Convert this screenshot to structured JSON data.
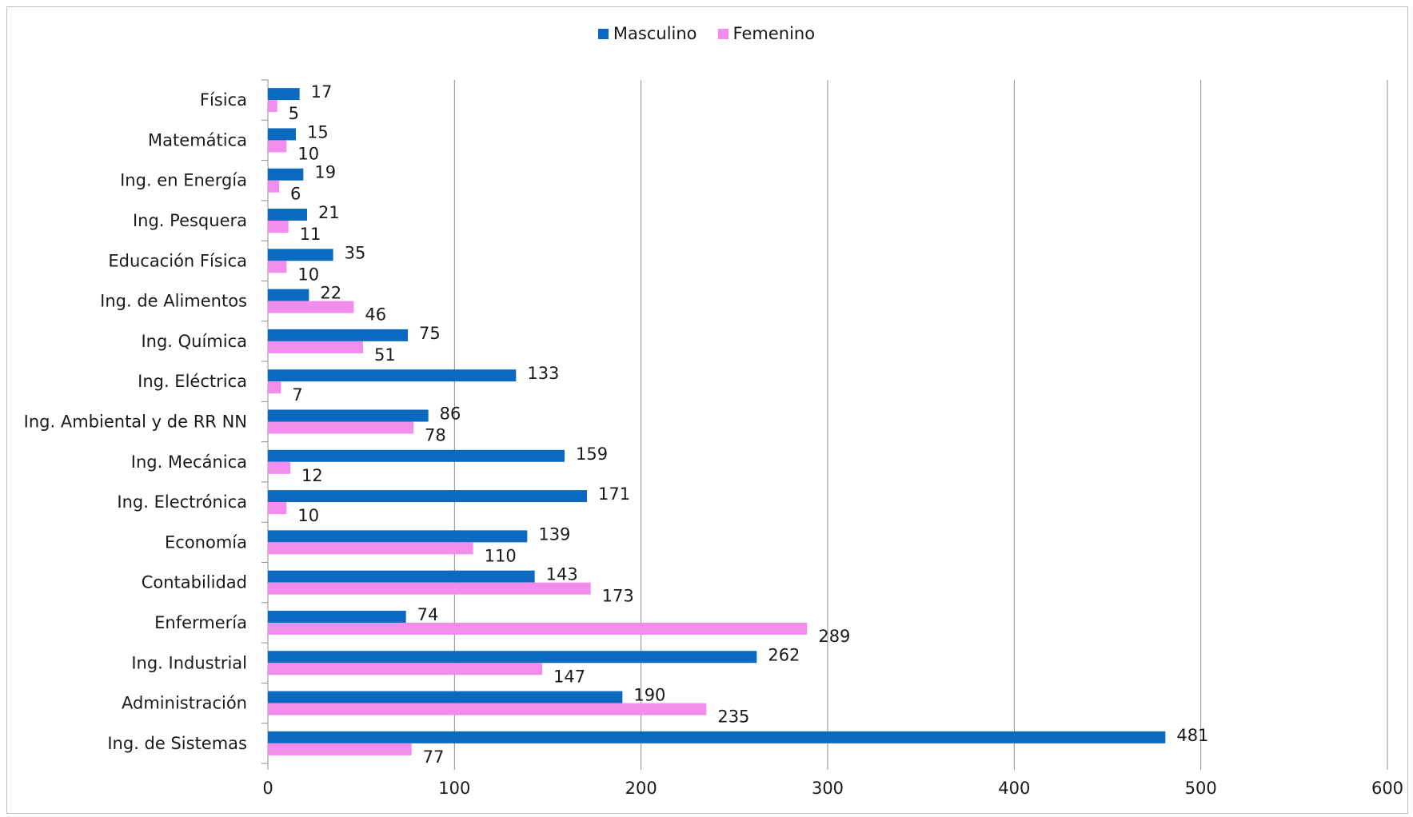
{
  "chart_data": {
    "type": "bar",
    "orientation": "horizontal",
    "categories": [
      "Física",
      "Matemática",
      "Ing. en Energía",
      "Ing. Pesquera",
      "Educación Física",
      "Ing. de Alimentos",
      "Ing. Química",
      "Ing. Eléctrica",
      "Ing. Ambiental y de RR NN",
      "Ing. Mecánica",
      "Ing. Electrónica",
      "Economía",
      "Contabilidad",
      "Enfermería",
      "Ing. Industrial",
      "Administración",
      "Ing. de Sistemas"
    ],
    "series": [
      {
        "name": "Masculino",
        "color": "#0b6abf",
        "values": [
          17,
          15,
          19,
          21,
          35,
          22,
          75,
          133,
          86,
          159,
          171,
          139,
          143,
          74,
          262,
          190,
          481
        ]
      },
      {
        "name": "Femenino",
        "color": "#f28ded",
        "values": [
          5,
          10,
          6,
          11,
          10,
          46,
          51,
          7,
          78,
          12,
          10,
          110,
          173,
          289,
          147,
          235,
          77
        ]
      }
    ],
    "xlim": [
      0,
      600
    ],
    "xticks": [
      "0",
      "100",
      "200",
      "300",
      "400",
      "500",
      "600"
    ],
    "grid": true,
    "legend_position": "top-center",
    "data_labels": true,
    "title": "",
    "xlabel": "",
    "ylabel": ""
  }
}
